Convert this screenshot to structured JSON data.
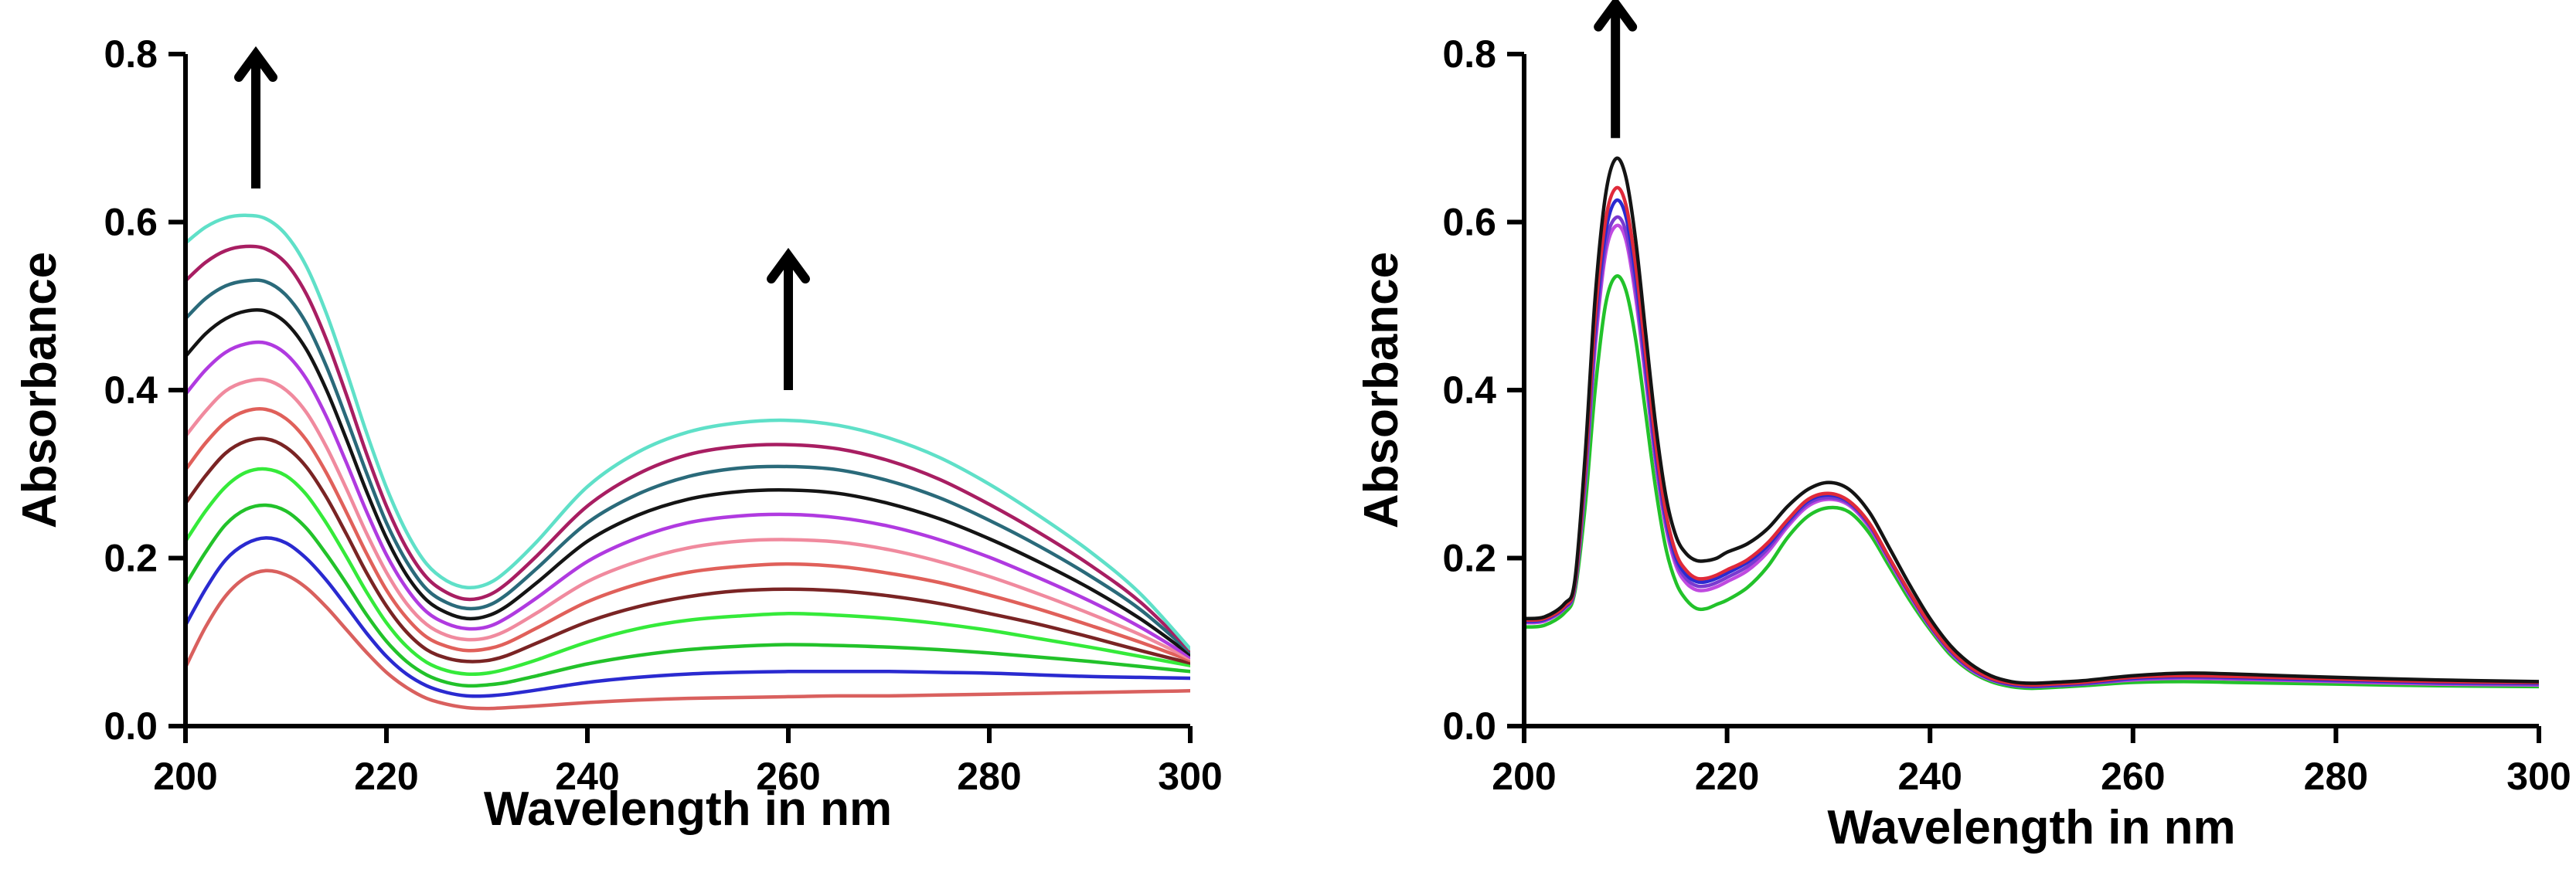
{
  "chart_data": [
    {
      "type": "line",
      "panel": "left",
      "xlabel": "Wavelength in nm",
      "ylabel": "Absorbance",
      "xlim": [
        200,
        300
      ],
      "ylim": [
        0,
        0.8
      ],
      "xticks": [
        "200",
        "220",
        "240",
        "260",
        "280",
        "300"
      ],
      "yticks": [
        "0.0",
        "0.2",
        "0.4",
        "0.6",
        "0.8"
      ],
      "grid": false,
      "legend": "none",
      "annotations": [
        {
          "type": "arrow-up",
          "x": 207,
          "y_from": 0.64,
          "y_to": 0.8
        },
        {
          "type": "arrow-up",
          "x": 260,
          "y_from": 0.4,
          "y_to": 0.56
        }
      ],
      "x": [
        200,
        202,
        204,
        206,
        208,
        210,
        212,
        214,
        216,
        218,
        220,
        222,
        224,
        226,
        228,
        230,
        232,
        235,
        240,
        245,
        250,
        255,
        260,
        265,
        270,
        275,
        280,
        285,
        290,
        295,
        300
      ],
      "series": [
        {
          "color": "#d9605e",
          "values": [
            0.07,
            0.118,
            0.155,
            0.177,
            0.185,
            0.18,
            0.165,
            0.142,
            0.115,
            0.088,
            0.064,
            0.046,
            0.033,
            0.026,
            0.022,
            0.021,
            0.022,
            0.024,
            0.028,
            0.031,
            0.033,
            0.034,
            0.035,
            0.036,
            0.036,
            0.037,
            0.038,
            0.039,
            0.04,
            0.041,
            0.042
          ]
        },
        {
          "color": "#2a2ad0",
          "values": [
            0.12,
            0.163,
            0.198,
            0.217,
            0.224,
            0.218,
            0.2,
            0.174,
            0.143,
            0.111,
            0.083,
            0.062,
            0.048,
            0.04,
            0.036,
            0.036,
            0.038,
            0.043,
            0.052,
            0.058,
            0.062,
            0.064,
            0.065,
            0.065,
            0.065,
            0.064,
            0.063,
            0.061,
            0.059,
            0.058,
            0.057
          ]
        },
        {
          "color": "#22c22a",
          "values": [
            0.168,
            0.207,
            0.24,
            0.258,
            0.263,
            0.256,
            0.236,
            0.205,
            0.17,
            0.133,
            0.101,
            0.077,
            0.061,
            0.052,
            0.048,
            0.049,
            0.052,
            0.06,
            0.074,
            0.084,
            0.091,
            0.095,
            0.097,
            0.096,
            0.094,
            0.091,
            0.087,
            0.082,
            0.077,
            0.071,
            0.065
          ]
        },
        {
          "color": "#35ea3a",
          "values": [
            0.22,
            0.256,
            0.285,
            0.302,
            0.306,
            0.298,
            0.276,
            0.242,
            0.202,
            0.16,
            0.123,
            0.095,
            0.076,
            0.066,
            0.062,
            0.063,
            0.068,
            0.079,
            0.1,
            0.116,
            0.126,
            0.131,
            0.134,
            0.132,
            0.128,
            0.122,
            0.114,
            0.104,
            0.094,
            0.083,
            0.072
          ]
        },
        {
          "color": "#7a2424",
          "values": [
            0.265,
            0.298,
            0.325,
            0.339,
            0.342,
            0.332,
            0.309,
            0.273,
            0.229,
            0.183,
            0.143,
            0.112,
            0.091,
            0.081,
            0.077,
            0.078,
            0.084,
            0.099,
            0.124,
            0.142,
            0.154,
            0.161,
            0.163,
            0.161,
            0.155,
            0.146,
            0.134,
            0.121,
            0.106,
            0.09,
            0.075
          ]
        },
        {
          "color": "#e0605a",
          "values": [
            0.305,
            0.337,
            0.362,
            0.375,
            0.377,
            0.366,
            0.341,
            0.302,
            0.255,
            0.206,
            0.162,
            0.129,
            0.106,
            0.095,
            0.09,
            0.092,
            0.099,
            0.117,
            0.148,
            0.169,
            0.183,
            0.19,
            0.193,
            0.19,
            0.182,
            0.171,
            0.156,
            0.139,
            0.12,
            0.1,
            0.078
          ]
        },
        {
          "color": "#f08a9e",
          "values": [
            0.345,
            0.375,
            0.399,
            0.41,
            0.412,
            0.4,
            0.374,
            0.333,
            0.283,
            0.23,
            0.183,
            0.146,
            0.121,
            0.108,
            0.103,
            0.105,
            0.114,
            0.135,
            0.172,
            0.196,
            0.212,
            0.22,
            0.222,
            0.219,
            0.21,
            0.196,
            0.178,
            0.157,
            0.134,
            0.109,
            0.08
          ]
        },
        {
          "color": "#b03ae0",
          "values": [
            0.395,
            0.424,
            0.445,
            0.455,
            0.456,
            0.443,
            0.414,
            0.369,
            0.314,
            0.256,
            0.204,
            0.164,
            0.136,
            0.122,
            0.116,
            0.118,
            0.129,
            0.153,
            0.196,
            0.224,
            0.242,
            0.25,
            0.252,
            0.248,
            0.238,
            0.222,
            0.201,
            0.176,
            0.149,
            0.118,
            0.082
          ]
        },
        {
          "color": "#141414",
          "values": [
            0.44,
            0.467,
            0.485,
            0.494,
            0.494,
            0.48,
            0.449,
            0.401,
            0.342,
            0.28,
            0.224,
            0.18,
            0.15,
            0.135,
            0.128,
            0.131,
            0.143,
            0.171,
            0.22,
            0.251,
            0.27,
            0.279,
            0.281,
            0.277,
            0.265,
            0.247,
            0.223,
            0.195,
            0.164,
            0.128,
            0.085
          ]
        },
        {
          "color": "#2a6a7a",
          "values": [
            0.485,
            0.509,
            0.524,
            0.53,
            0.529,
            0.513,
            0.48,
            0.429,
            0.367,
            0.302,
            0.242,
            0.196,
            0.163,
            0.147,
            0.14,
            0.143,
            0.157,
            0.188,
            0.242,
            0.276,
            0.297,
            0.307,
            0.309,
            0.305,
            0.292,
            0.272,
            0.245,
            0.214,
            0.179,
            0.139,
            0.088
          ]
        },
        {
          "color": "#a81e62",
          "values": [
            0.53,
            0.552,
            0.566,
            0.571,
            0.568,
            0.551,
            0.515,
            0.461,
            0.395,
            0.325,
            0.262,
            0.212,
            0.177,
            0.159,
            0.151,
            0.155,
            0.17,
            0.203,
            0.262,
            0.3,
            0.323,
            0.333,
            0.335,
            0.33,
            0.316,
            0.294,
            0.264,
            0.23,
            0.192,
            0.148,
            0.09
          ]
        },
        {
          "color": "#5fe0c8",
          "values": [
            0.575,
            0.594,
            0.605,
            0.608,
            0.604,
            0.585,
            0.548,
            0.492,
            0.423,
            0.35,
            0.284,
            0.231,
            0.193,
            0.173,
            0.165,
            0.169,
            0.185,
            0.22,
            0.285,
            0.326,
            0.35,
            0.361,
            0.364,
            0.358,
            0.343,
            0.32,
            0.288,
            0.25,
            0.208,
            0.158,
            0.092
          ]
        }
      ]
    },
    {
      "type": "line",
      "panel": "right",
      "xlabel": "Wavelength in nm",
      "ylabel": "Absorbance",
      "xlim": [
        200,
        300
      ],
      "ylim": [
        0,
        0.8
      ],
      "xticks": [
        "200",
        "220",
        "240",
        "260",
        "280",
        "300"
      ],
      "yticks": [
        "0.0",
        "0.2",
        "0.4",
        "0.6",
        "0.8"
      ],
      "grid": false,
      "legend": "none",
      "annotations": [
        {
          "type": "arrow-up",
          "x": 209,
          "y_from": 0.7,
          "y_to": 0.86
        }
      ],
      "x": [
        200,
        202,
        204,
        205,
        206,
        207,
        208,
        209,
        210,
        211,
        212,
        213,
        214,
        215,
        216,
        217,
        218,
        219,
        220,
        222,
        224,
        226,
        228,
        230,
        232,
        234,
        236,
        238,
        240,
        242,
        244,
        246,
        248,
        250,
        252,
        255,
        260,
        265,
        270,
        280,
        290,
        300
      ],
      "series": [
        {
          "color": "#22c22a",
          "values": [
            0.118,
            0.12,
            0.135,
            0.16,
            0.26,
            0.4,
            0.5,
            0.535,
            0.52,
            0.46,
            0.37,
            0.28,
            0.21,
            0.17,
            0.15,
            0.14,
            0.14,
            0.145,
            0.15,
            0.165,
            0.19,
            0.225,
            0.25,
            0.26,
            0.255,
            0.23,
            0.19,
            0.15,
            0.115,
            0.085,
            0.065,
            0.053,
            0.047,
            0.045,
            0.046,
            0.048,
            0.052,
            0.053,
            0.052,
            0.05,
            0.048,
            0.047
          ]
        },
        {
          "color": "#c04ae0",
          "values": [
            0.123,
            0.125,
            0.14,
            0.165,
            0.285,
            0.45,
            0.56,
            0.595,
            0.58,
            0.51,
            0.41,
            0.31,
            0.235,
            0.19,
            0.17,
            0.162,
            0.162,
            0.166,
            0.172,
            0.185,
            0.207,
            0.238,
            0.262,
            0.27,
            0.263,
            0.237,
            0.196,
            0.155,
            0.118,
            0.088,
            0.067,
            0.055,
            0.049,
            0.047,
            0.048,
            0.05,
            0.055,
            0.057,
            0.056,
            0.053,
            0.05,
            0.049
          ]
        },
        {
          "color": "#7a3ad0",
          "values": [
            0.124,
            0.126,
            0.141,
            0.166,
            0.29,
            0.46,
            0.57,
            0.605,
            0.59,
            0.52,
            0.418,
            0.316,
            0.24,
            0.195,
            0.175,
            0.167,
            0.167,
            0.171,
            0.177,
            0.19,
            0.211,
            0.241,
            0.265,
            0.272,
            0.265,
            0.239,
            0.198,
            0.157,
            0.119,
            0.089,
            0.068,
            0.056,
            0.049,
            0.047,
            0.048,
            0.05,
            0.056,
            0.058,
            0.057,
            0.054,
            0.051,
            0.05
          ]
        },
        {
          "color": "#2a2ad0",
          "values": [
            0.125,
            0.127,
            0.142,
            0.168,
            0.3,
            0.475,
            0.585,
            0.625,
            0.608,
            0.535,
            0.43,
            0.325,
            0.247,
            0.2,
            0.18,
            0.172,
            0.172,
            0.176,
            0.182,
            0.195,
            0.215,
            0.244,
            0.268,
            0.275,
            0.267,
            0.241,
            0.199,
            0.158,
            0.12,
            0.09,
            0.069,
            0.056,
            0.05,
            0.048,
            0.049,
            0.051,
            0.057,
            0.059,
            0.058,
            0.055,
            0.052,
            0.051
          ]
        },
        {
          "color": "#e02a3a",
          "values": [
            0.126,
            0.128,
            0.143,
            0.17,
            0.305,
            0.485,
            0.6,
            0.64,
            0.622,
            0.548,
            0.44,
            0.333,
            0.252,
            0.205,
            0.185,
            0.176,
            0.176,
            0.18,
            0.186,
            0.198,
            0.218,
            0.246,
            0.27,
            0.277,
            0.268,
            0.242,
            0.2,
            0.159,
            0.121,
            0.091,
            0.07,
            0.057,
            0.051,
            0.049,
            0.05,
            0.052,
            0.058,
            0.06,
            0.059,
            0.056,
            0.053,
            0.052
          ]
        },
        {
          "color": "#141414",
          "values": [
            0.128,
            0.13,
            0.146,
            0.174,
            0.32,
            0.51,
            0.63,
            0.675,
            0.655,
            0.578,
            0.465,
            0.355,
            0.272,
            0.225,
            0.205,
            0.197,
            0.197,
            0.2,
            0.207,
            0.217,
            0.235,
            0.262,
            0.282,
            0.29,
            0.282,
            0.255,
            0.212,
            0.168,
            0.128,
            0.096,
            0.074,
            0.06,
            0.053,
            0.051,
            0.052,
            0.054,
            0.06,
            0.063,
            0.062,
            0.058,
            0.055,
            0.053
          ]
        }
      ]
    }
  ]
}
